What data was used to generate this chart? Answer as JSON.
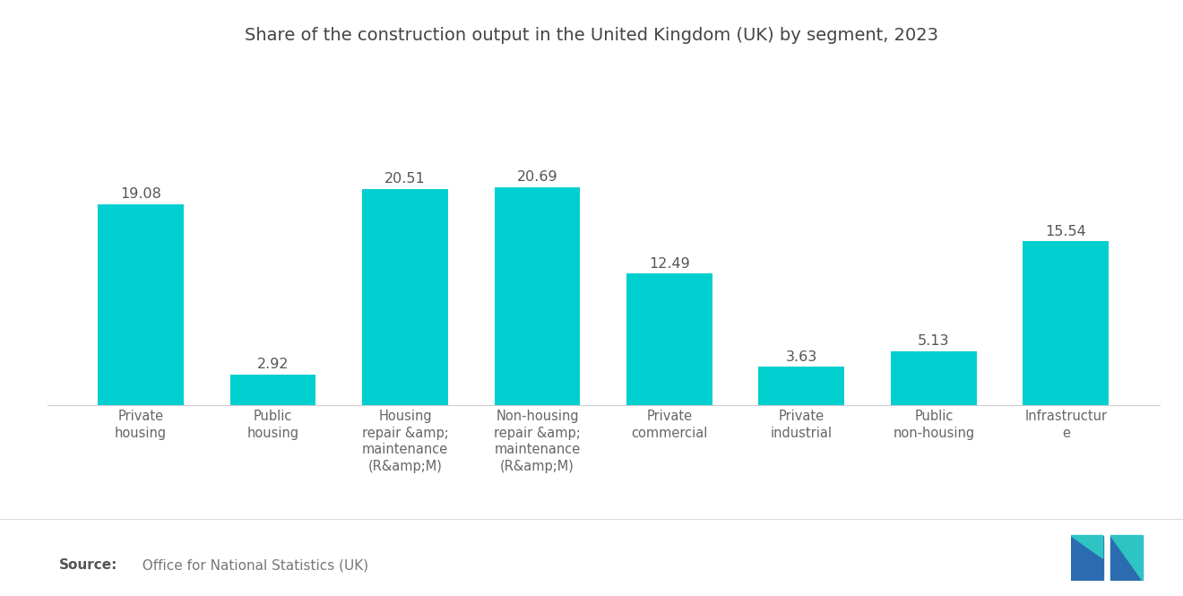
{
  "title": "Share of the construction output in the United Kingdom (UK) by segment, 2023",
  "categories": [
    "Private\nhousing",
    "Public\nhousing",
    "Housing\nrepair &amp;\nmaintenance\n(R&amp;M)",
    "Non-housing\nrepair &amp;\nmaintenance\n(R&amp;M)",
    "Private\ncommercial",
    "Private\nindustrial",
    "Public\nnon-housing",
    "Infrastructur\ne"
  ],
  "values": [
    19.08,
    2.92,
    20.51,
    20.69,
    12.49,
    3.63,
    5.13,
    15.54
  ],
  "bar_color": "#00CFCF",
  "background_color": "#ffffff",
  "source_bold": "Source:",
  "source_regular": "  Office for National Statistics (UK)",
  "title_fontsize": 14,
  "value_fontsize": 11.5,
  "label_fontsize": 10.5,
  "source_fontsize": 11,
  "ylim": [
    0,
    26
  ],
  "bar_width": 0.65,
  "logo_blue": "#2B6CB0",
  "logo_cyan": "#2EC4C4"
}
